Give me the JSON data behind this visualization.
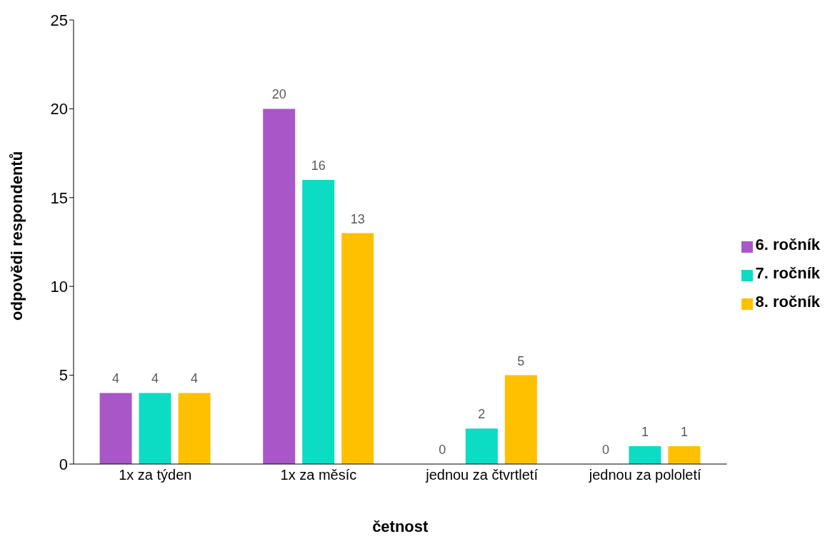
{
  "chart_data": {
    "type": "bar",
    "xlabel": "četnost",
    "ylabel": "odpovědi respondentů",
    "categories": [
      "1x za týden",
      "1x za měsíc",
      "jednou za čtvrtletí",
      "jednou za pololetí"
    ],
    "series": [
      {
        "name": "6. ročník",
        "color": "#a957c8",
        "values": [
          4,
          20,
          0,
          0
        ]
      },
      {
        "name": "7. ročník",
        "color": "#0cdcc4",
        "values": [
          4,
          16,
          2,
          1
        ]
      },
      {
        "name": "8. ročník",
        "color": "#ffc000",
        "values": [
          4,
          13,
          5,
          1
        ]
      }
    ],
    "ylim": [
      0,
      25
    ],
    "yticks": [
      0,
      5,
      10,
      15,
      20,
      25
    ],
    "grid": false,
    "legend": "right",
    "data_labels": true
  }
}
